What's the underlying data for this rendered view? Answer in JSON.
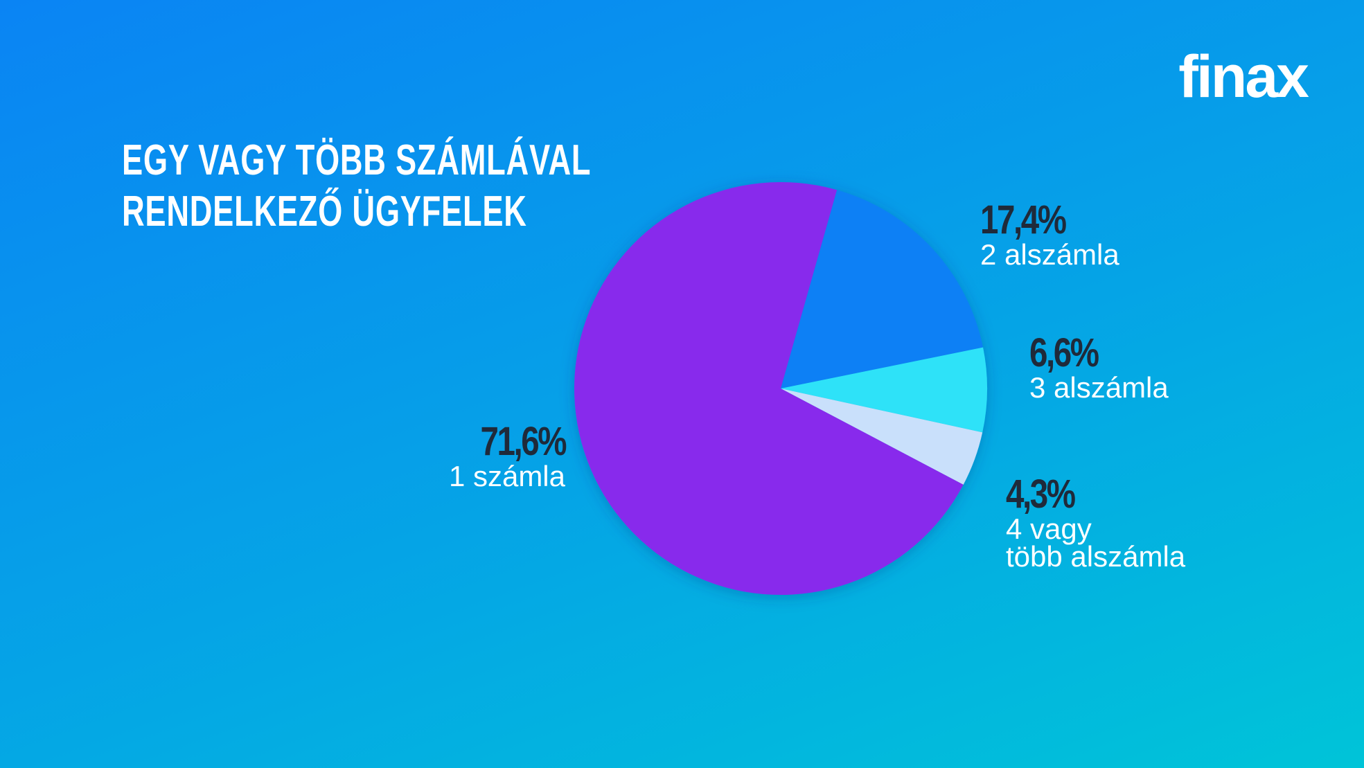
{
  "brand": "finax",
  "chart_data": {
    "type": "pie",
    "title": "EGY VAGY TÖBB SZÁMLÁVAL\nRENDELKEZŐ ÜGYFELEK",
    "categories": [
      "2 alszámla",
      "3 alszámla",
      "4 vagy\ntöbb alszámla",
      "1 számla"
    ],
    "values": [
      17.4,
      6.6,
      4.3,
      71.6
    ],
    "value_labels": [
      "17,4%",
      "6,6%",
      "4,3%",
      "71,6%"
    ],
    "colors": [
      "#0a80f5",
      "#2ee2f8",
      "#c9e0fb",
      "#882bec"
    ]
  }
}
